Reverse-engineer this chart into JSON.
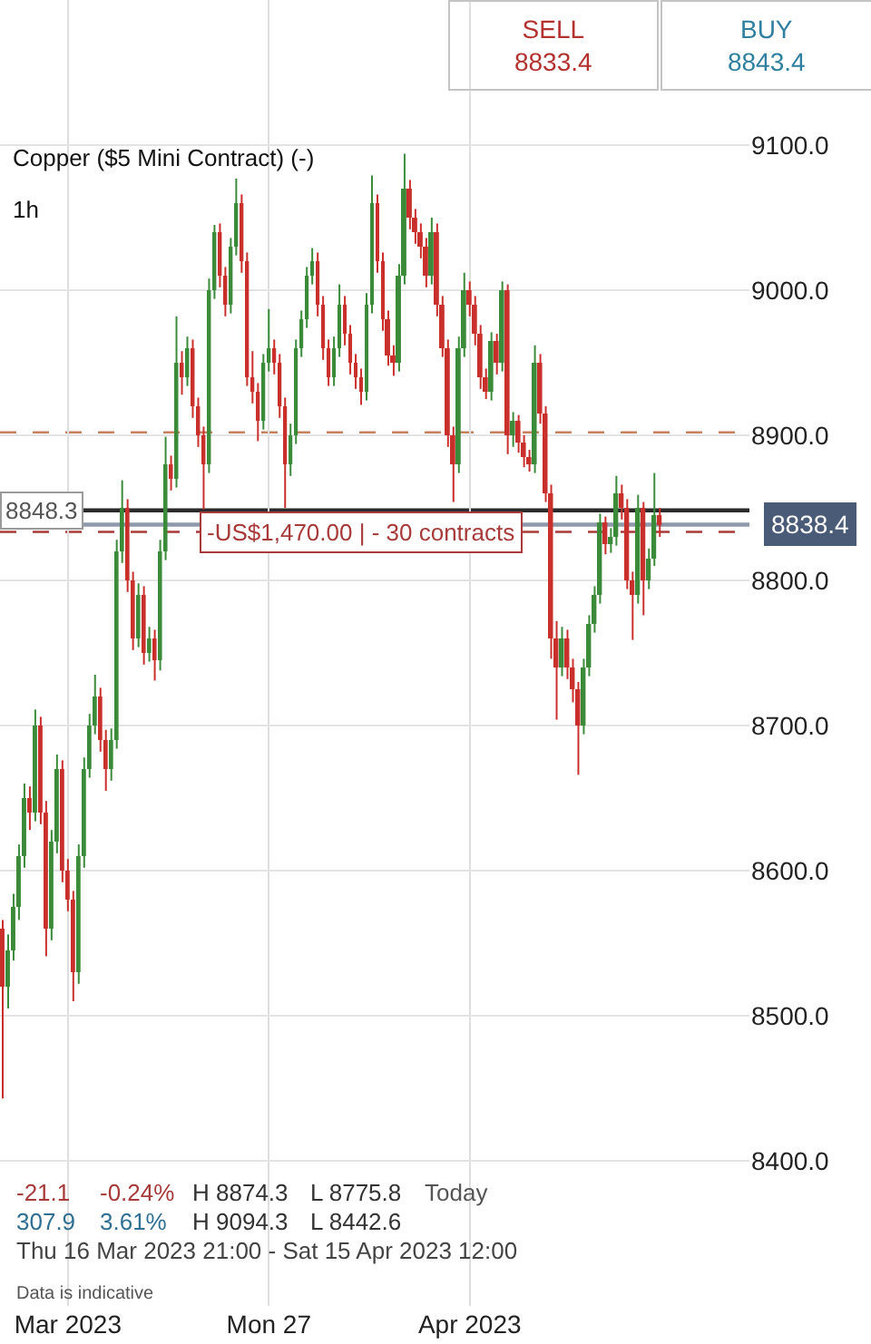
{
  "chart_data": {
    "type": "candlestick",
    "title": "Copper ($5 Mini Contract) (-)",
    "subtitle": "1h",
    "categories": [
      null,
      null,
      null,
      null,
      null,
      null,
      null,
      null,
      null,
      null,
      null,
      null,
      "Mar 2023",
      null,
      null,
      null,
      null,
      null,
      null,
      null,
      null,
      null,
      null,
      null,
      null,
      null,
      null,
      null,
      null,
      null,
      null,
      null,
      null,
      null,
      null,
      null,
      null,
      null,
      null,
      null,
      null,
      null,
      null,
      null,
      null,
      null,
      null,
      null,
      null,
      "Mon 27",
      null,
      null,
      null,
      null,
      null,
      null,
      null,
      null,
      null,
      null,
      null,
      null,
      null,
      null,
      null,
      null,
      null,
      null,
      null,
      null,
      null,
      null,
      null,
      null,
      null,
      null,
      null,
      null,
      null,
      null,
      null,
      null,
      null,
      null,
      null,
      null,
      "Apr 2023",
      null,
      null,
      null,
      null,
      null,
      null,
      null,
      null,
      null,
      null,
      null,
      null,
      null,
      null,
      null,
      null,
      null,
      null,
      null,
      null,
      null,
      null,
      null,
      null,
      null,
      null,
      null,
      null,
      null,
      null,
      null,
      null,
      null,
      null,
      null,
      null,
      null,
      null,
      null,
      null,
      null,
      null,
      null,
      null,
      null,
      null,
      null,
      null,
      null,
      null,
      null
    ],
    "ohlc": [
      [
        8560,
        8566,
        8443,
        8520
      ],
      [
        8520,
        8556,
        8505,
        8545
      ],
      [
        8545,
        8584,
        8538,
        8575
      ],
      [
        8575,
        8618,
        8566,
        8610
      ],
      [
        8610,
        8660,
        8602,
        8650
      ],
      [
        8650,
        8658,
        8628,
        8640
      ],
      [
        8640,
        8711,
        8634,
        8700
      ],
      [
        8700,
        8706,
        8632,
        8640
      ],
      [
        8640,
        8648,
        8541,
        8560
      ],
      [
        8560,
        8628,
        8552,
        8620
      ],
      [
        8620,
        8680,
        8612,
        8670
      ],
      [
        8670,
        8676,
        8592,
        8600
      ],
      [
        8600,
        8608,
        8572,
        8580
      ],
      [
        8580,
        8586,
        8510,
        8530
      ],
      [
        8530,
        8618,
        8522,
        8610
      ],
      [
        8610,
        8678,
        8602,
        8670
      ],
      [
        8670,
        8708,
        8664,
        8700
      ],
      [
        8700,
        8735,
        8694,
        8720
      ],
      [
        8720,
        8726,
        8682,
        8690
      ],
      [
        8690,
        8697,
        8655,
        8670
      ],
      [
        8670,
        8698,
        8662,
        8690
      ],
      [
        8690,
        8828,
        8684,
        8820
      ],
      [
        8820,
        8869,
        8812,
        8850
      ],
      [
        8850,
        8856,
        8792,
        8800
      ],
      [
        8800,
        8806,
        8752,
        8760
      ],
      [
        8760,
        8798,
        8754,
        8790
      ],
      [
        8790,
        8796,
        8742,
        8750
      ],
      [
        8750,
        8768,
        8744,
        8760
      ],
      [
        8760,
        8766,
        8731,
        8745
      ],
      [
        8745,
        8828,
        8738,
        8820
      ],
      [
        8820,
        8899,
        8814,
        8880
      ],
      [
        8880,
        8886,
        8862,
        8870
      ],
      [
        8870,
        8982,
        8864,
        8950
      ],
      [
        8950,
        8958,
        8928,
        8940
      ],
      [
        8940,
        8968,
        8934,
        8960
      ],
      [
        8960,
        8966,
        8912,
        8920
      ],
      [
        8920,
        8926,
        8892,
        8900
      ],
      [
        8900,
        8906,
        8849,
        8880
      ],
      [
        8880,
        9008,
        8874,
        9000
      ],
      [
        9000,
        9045,
        8994,
        9040
      ],
      [
        9040,
        9046,
        9002,
        9010
      ],
      [
        9010,
        9016,
        8982,
        8990
      ],
      [
        8990,
        9036,
        8984,
        9030
      ],
      [
        9030,
        9077,
        9024,
        9060
      ],
      [
        9060,
        9066,
        9012,
        9020
      ],
      [
        9020,
        9026,
        8934,
        8940
      ],
      [
        8940,
        8958,
        8922,
        8930
      ],
      [
        8930,
        8936,
        8896,
        8910
      ],
      [
        8910,
        8956,
        8904,
        8950
      ],
      [
        8950,
        8987,
        8944,
        8960
      ],
      [
        8960,
        8966,
        8942,
        8950
      ],
      [
        8950,
        8956,
        8912,
        8920
      ],
      [
        8920,
        8926,
        8850,
        8880
      ],
      [
        8880,
        8908,
        8872,
        8900
      ],
      [
        8900,
        8966,
        8894,
        8960
      ],
      [
        8960,
        8986,
        8954,
        8980
      ],
      [
        8980,
        9016,
        8974,
        9010
      ],
      [
        9010,
        9029,
        9004,
        9020
      ],
      [
        9020,
        9026,
        8982,
        8990
      ],
      [
        8990,
        8996,
        8952,
        8960
      ],
      [
        8960,
        8966,
        8934,
        8940
      ],
      [
        8940,
        8968,
        8934,
        8960
      ],
      [
        8960,
        9004,
        8954,
        8990
      ],
      [
        8990,
        8996,
        8962,
        8970
      ],
      [
        8970,
        8976,
        8942,
        8950
      ],
      [
        8950,
        8956,
        8932,
        8940
      ],
      [
        8940,
        8946,
        8921,
        8930
      ],
      [
        8930,
        8998,
        8924,
        8990
      ],
      [
        8990,
        9079,
        8984,
        9060
      ],
      [
        9060,
        9066,
        9012,
        9020
      ],
      [
        9020,
        9026,
        8972,
        8980
      ],
      [
        8980,
        8986,
        8948,
        8955
      ],
      [
        8955,
        8962,
        8941,
        8950
      ],
      [
        8950,
        9018,
        8944,
        9010
      ],
      [
        9010,
        9094,
        9004,
        9070
      ],
      [
        9070,
        9076,
        9042,
        9050
      ],
      [
        9050,
        9056,
        9032,
        9040
      ],
      [
        9040,
        9046,
        9022,
        9030
      ],
      [
        9030,
        9036,
        9002,
        9010
      ],
      [
        9010,
        9050,
        9004,
        9040
      ],
      [
        9040,
        9046,
        8982,
        8990
      ],
      [
        8990,
        8996,
        8954,
        8960
      ],
      [
        8960,
        8966,
        8892,
        8900
      ],
      [
        8900,
        8906,
        8854,
        8880
      ],
      [
        8880,
        8968,
        8874,
        8960
      ],
      [
        8960,
        9012,
        8954,
        9000
      ],
      [
        9000,
        9006,
        8982,
        8990
      ],
      [
        8990,
        8996,
        8962,
        8970
      ],
      [
        8970,
        8976,
        8932,
        8940
      ],
      [
        8940,
        8946,
        8925,
        8930
      ],
      [
        8930,
        8971,
        8924,
        8965
      ],
      [
        8965,
        8970,
        8942,
        8950
      ],
      [
        8950,
        9006,
        8944,
        9000
      ],
      [
        9000,
        9004,
        8887,
        8900
      ],
      [
        8900,
        8916,
        8892,
        8910
      ],
      [
        8910,
        8914,
        8888,
        8895
      ],
      [
        8895,
        8900,
        8878,
        8885
      ],
      [
        8885,
        8890,
        8875,
        8880
      ],
      [
        8880,
        8962,
        8874,
        8950
      ],
      [
        8950,
        8956,
        8908,
        8915
      ],
      [
        8915,
        8920,
        8854,
        8860
      ],
      [
        8860,
        8866,
        8746,
        8760
      ],
      [
        8760,
        8772,
        8704,
        8740
      ],
      [
        8740,
        8768,
        8734,
        8760
      ],
      [
        8760,
        8766,
        8732,
        8740
      ],
      [
        8740,
        8746,
        8716,
        8725
      ],
      [
        8725,
        8730,
        8666,
        8700
      ],
      [
        8700,
        8746,
        8694,
        8740
      ],
      [
        8740,
        8776,
        8734,
        8770
      ],
      [
        8770,
        8796,
        8764,
        8790
      ],
      [
        8790,
        8846,
        8784,
        8840
      ],
      [
        8840,
        8844,
        8818,
        8825
      ],
      [
        8825,
        8836,
        8819,
        8830
      ],
      [
        8830,
        8872,
        8824,
        8860
      ],
      [
        8860,
        8866,
        8842,
        8850
      ],
      [
        8850,
        8856,
        8794,
        8800
      ],
      [
        8800,
        8806,
        8759,
        8790
      ],
      [
        8790,
        8859,
        8784,
        8850
      ],
      [
        8850,
        8854,
        8776,
        8800
      ],
      [
        8800,
        8822,
        8794,
        8815
      ],
      [
        8815,
        8874,
        8810,
        8845
      ],
      [
        8845,
        8850,
        8830,
        8838
      ],
      null,
      null,
      null,
      null,
      null,
      null,
      null,
      null,
      null,
      null,
      null,
      null,
      null,
      null,
      null,
      null
    ],
    "colors": [
      "#c9302c",
      "#3b8b3a",
      "#3b8b3a",
      "#3b8b3a",
      "#3b8b3a",
      "#c9302c",
      "#3b8b3a",
      "#c9302c",
      "#c9302c",
      "#3b8b3a",
      "#3b8b3a",
      "#c9302c",
      "#c9302c",
      "#c9302c",
      "#3b8b3a",
      "#3b8b3a",
      "#3b8b3a",
      "#3b8b3a",
      "#c9302c",
      "#c9302c",
      "#3b8b3a",
      "#3b8b3a",
      "#3b8b3a",
      "#c9302c",
      "#c9302c",
      "#3b8b3a",
      "#c9302c",
      "#3b8b3a",
      "#c9302c",
      "#3b8b3a",
      "#3b8b3a",
      "#c9302c",
      "#3b8b3a",
      "#c9302c",
      "#3b8b3a",
      "#c9302c",
      "#c9302c",
      "#c9302c",
      "#3b8b3a",
      "#3b8b3a",
      "#c9302c",
      "#c9302c",
      "#3b8b3a",
      "#3b8b3a",
      "#c9302c",
      "#c9302c",
      "#c9302c",
      "#c9302c",
      "#3b8b3a",
      "#3b8b3a",
      "#c9302c",
      "#c9302c",
      "#c9302c",
      "#3b8b3a",
      "#3b8b3a",
      "#3b8b3a",
      "#3b8b3a",
      "#3b8b3a",
      "#c9302c",
      "#c9302c",
      "#c9302c",
      "#3b8b3a",
      "#3b8b3a",
      "#c9302c",
      "#c9302c",
      "#c9302c",
      "#c9302c",
      "#3b8b3a",
      "#3b8b3a",
      "#c9302c",
      "#c9302c",
      "#c9302c",
      "#c9302c",
      "#3b8b3a",
      "#3b8b3a",
      "#c9302c",
      "#c9302c",
      "#c9302c",
      "#c9302c",
      "#3b8b3a",
      "#c9302c",
      "#c9302c",
      "#c9302c",
      "#c9302c",
      "#3b8b3a",
      "#3b8b3a",
      "#c9302c",
      "#c9302c",
      "#c9302c",
      "#c9302c",
      "#3b8b3a",
      "#c9302c",
      "#3b8b3a",
      "#c9302c",
      "#3b8b3a",
      "#c9302c",
      "#c9302c",
      "#c9302c",
      "#3b8b3a",
      "#c9302c",
      "#c9302c",
      "#c9302c",
      "#c9302c",
      "#3b8b3a",
      "#c9302c",
      "#c9302c",
      "#c9302c",
      "#3b8b3a",
      "#3b8b3a",
      "#3b8b3a",
      "#3b8b3a",
      "#c9302c",
      "#3b8b3a",
      "#3b8b3a",
      "#c9302c",
      "#c9302c",
      "#c9302c",
      "#3b8b3a",
      "#c9302c",
      "#3b8b3a",
      "#3b8b3a",
      "#c9302c",
      null,
      null,
      null,
      null,
      null,
      null,
      null,
      null,
      null,
      null,
      null,
      null,
      null,
      null,
      null,
      null
    ],
    "ylim": [
      8300,
      9200
    ],
    "yticks": [
      {
        "value": 8400,
        "label": "8400.0"
      },
      {
        "value": 8500,
        "label": "8500.0"
      },
      {
        "value": 8600,
        "label": "8600.0"
      },
      {
        "value": 8700,
        "label": "8700.0"
      },
      {
        "value": 8800,
        "label": "8800.0"
      },
      {
        "value": 8900,
        "label": "8900.0"
      },
      {
        "value": 9000,
        "label": "9000.0"
      },
      {
        "value": 9100,
        "label": "9100.0"
      }
    ],
    "grid": true,
    "ref_lines": [
      {
        "axis": "y",
        "value": 8902,
        "color": "#c8805c",
        "line_style": "dashed"
      },
      {
        "axis": "y",
        "value": 8848.3,
        "label": "8848.3",
        "color": "#2b2b2b",
        "line_style": "solid"
      },
      {
        "axis": "y",
        "value": 8838.4,
        "label": "8838.4",
        "color": "#8e99aa",
        "line_style": "solid"
      },
      {
        "axis": "y",
        "value": 8833.4,
        "label": "-US$1,470.00 | - 30 contracts",
        "color": "#a83a3a",
        "line_style": "dashed"
      }
    ],
    "annotations": [
      "SELL",
      "8833.4",
      "BUY",
      "8843.4",
      "-21.1",
      "-0.24%",
      "H 8874.3",
      "L 8775.8",
      "Today",
      "307.9",
      "3.61%",
      "H 9094.3",
      "L 8442.6",
      "Thu 16 Mar 2023 21:00 - Sat 15 Apr 2023 12:00",
      "Data is indicative"
    ]
  }
}
